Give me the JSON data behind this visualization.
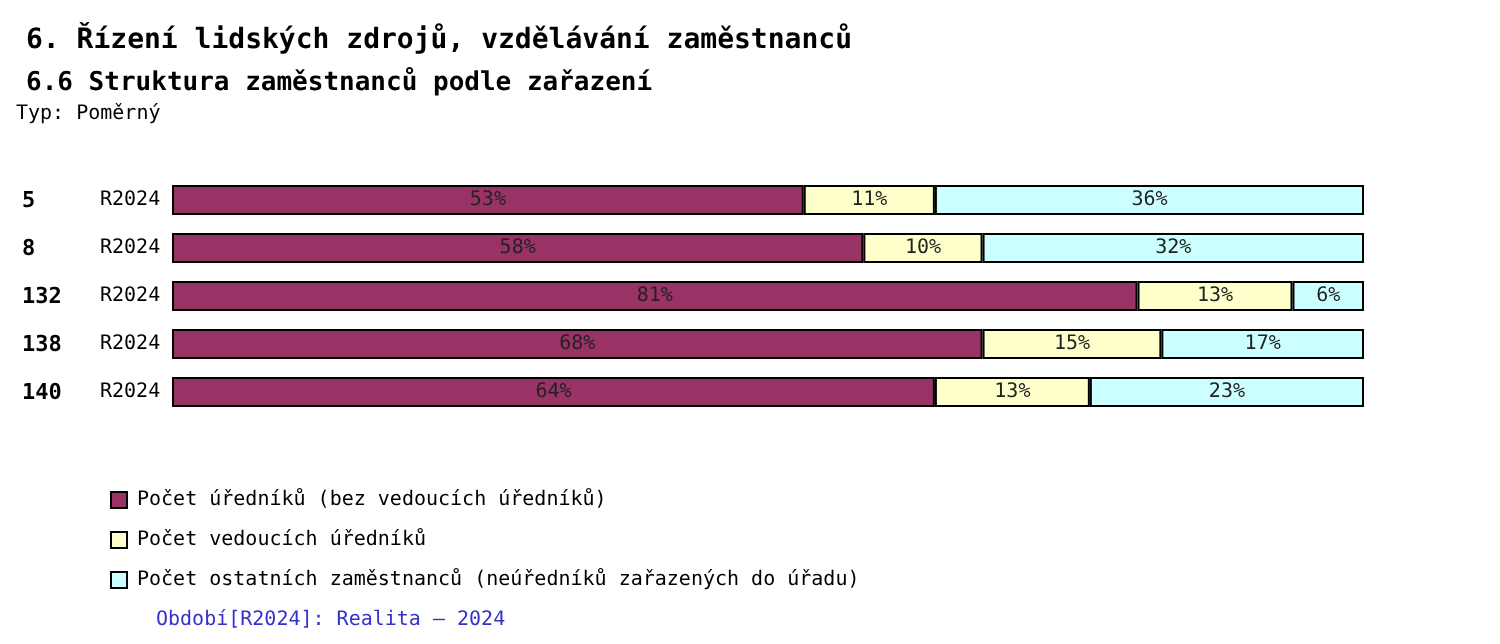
{
  "chart_data": {
    "type": "bar",
    "orientation": "horizontal",
    "stacked": true,
    "title": "6. Řízení lidských zdrojů, vzdělávání zaměstnanců",
    "subtitle": "6.6 Struktura zaměstnanců podle zařazení",
    "annotations": [
      "Typ: Poměrný",
      "Období[R2024]: Realita – 2024"
    ],
    "categories": [
      "5 R2024",
      "8 R2024",
      "132 R2024",
      "138 R2024",
      "140 R2024"
    ],
    "series": [
      {
        "name": "Počet úředníků (bez vedoucích úředníků)",
        "color": "#993366",
        "values": [
          53,
          58,
          81,
          68,
          64
        ],
        "value_labels": [
          "53%",
          "58%",
          "81%",
          "68%",
          "64%"
        ]
      },
      {
        "name": "Počet vedoucích úředníků",
        "color": "#ffffcc",
        "values": [
          11,
          10,
          13,
          15,
          13
        ],
        "value_labels": [
          "11%",
          "10%",
          "13%",
          "15%",
          "13%"
        ]
      },
      {
        "name": "Počet ostatních zaměstnanců (neúředníků zařazených do úřadu)",
        "color": "#ccffff",
        "values": [
          36,
          32,
          6,
          17,
          23
        ],
        "value_labels": [
          "36%",
          "32%",
          "6%",
          "17%",
          "23%"
        ]
      }
    ],
    "legend": "bottom left",
    "grid": false
  }
}
